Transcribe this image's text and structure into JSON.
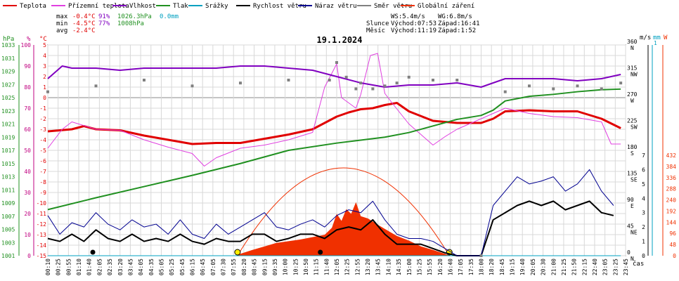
{
  "chart_data": {
    "type": "line",
    "title": "19.1.2024",
    "legend": [
      {
        "label": "Teplota",
        "color": "#e00000"
      },
      {
        "label": "Přízemní teplota",
        "color": "#e040e0"
      },
      {
        "label": "Vlhkost",
        "color": "#8000c0"
      },
      {
        "label": "Tlak",
        "color": "#209020"
      },
      {
        "label": "Srážky",
        "color": "#00a0c0"
      },
      {
        "label": "Rychlost větru",
        "color": "#000000"
      },
      {
        "label": "Náraz větru",
        "color": "#000090"
      },
      {
        "label": "Směr větru",
        "color": "#808080"
      },
      {
        "label": "Globální záření",
        "color": "#f03000"
      }
    ],
    "stats": {
      "max": {
        "label": "max",
        "temp": "-0.4°C",
        "hum": "91%",
        "press": "1026.3hPa",
        "rain": "0.0mm"
      },
      "min": {
        "label": "min",
        "temp": "-4.5°C",
        "hum": "77%",
        "press": "1008hPa"
      },
      "avg": {
        "label": "avg",
        "temp": "-2.4°C"
      },
      "ws": "WS:5.4m/s",
      "wg": "WG:6.8m/s",
      "sun": {
        "label": "Slunce",
        "rise": "Východ:07:53",
        "set": "Západ:16:41"
      },
      "moon": {
        "label": "Měsíc",
        "rise": "Východ:11:19",
        "set": "Západ:1:52"
      }
    },
    "axes": {
      "hpa": {
        "unit": "hPa",
        "ticks": [
          "1001",
          "1003",
          "1005",
          "1007",
          "1009",
          "1011",
          "1013",
          "1015",
          "1017",
          "1019",
          "1021",
          "1023",
          "1025",
          "1027",
          "1029",
          "1031",
          "1033"
        ]
      },
      "pct": {
        "unit": "%",
        "ticks": [
          "0",
          "10",
          "20",
          "30",
          "40",
          "50",
          "60",
          "70",
          "80",
          "90",
          "100"
        ]
      },
      "temp": {
        "unit": "°C",
        "range": [
          -15,
          5
        ]
      },
      "dir": {
        "ticks": [
          "0 N",
          "45 NE",
          "90 E",
          "135 SE",
          "180 S",
          "225 SW",
          "270 W",
          "315 NW",
          "360 N"
        ]
      },
      "ms": {
        "unit": "m/s",
        "ticks": [
          "0",
          "1",
          "2",
          "3",
          "4",
          "5",
          "6",
          "7"
        ]
      },
      "mm": {
        "unit": "mm",
        "tick": "1"
      },
      "wm2": {
        "unit": "W",
        "ticks": [
          "0",
          "48",
          "96",
          "144",
          "192",
          "240",
          "288",
          "336",
          "384",
          "432"
        ]
      },
      "x": {
        "unit": "čas",
        "ticks": [
          "00:10",
          "00:25",
          "00:55",
          "01:10",
          "01:40",
          "02:05",
          "02:35",
          "03:20",
          "03:45",
          "04:05",
          "04:35",
          "05:05",
          "05:25",
          "05:45",
          "06:15",
          "06:45",
          "07:05",
          "07:30",
          "07:55",
          "08:20",
          "08:45",
          "09:15",
          "09:35",
          "10:00",
          "10:25",
          "10:50",
          "11:15",
          "11:40",
          "12:05",
          "12:25",
          "12:55",
          "13:20",
          "13:45",
          "14:10",
          "14:35",
          "15:00",
          "15:25",
          "15:55",
          "16:20",
          "16:40",
          "17:05",
          "17:35",
          "18:00",
          "18:20",
          "18:45",
          "19:15",
          "19:40",
          "20:05",
          "20:30",
          "21:00",
          "21:25",
          "21:50",
          "22:15",
          "22:40",
          "23:05",
          "23:25",
          "23:45"
        ]
      }
    },
    "series": [
      {
        "name": "Teplota",
        "unit": "°C",
        "x": [
          0,
          1,
          1.5,
          2,
          3,
          4,
          5,
          6,
          7,
          8,
          9,
          10,
          11,
          11.5,
          12,
          12.5,
          13,
          13.5,
          14,
          14.5,
          15,
          16,
          17,
          18,
          18.5,
          19,
          20,
          21,
          22,
          23,
          23.8
        ],
        "y": [
          -3.2,
          -3.0,
          -2.7,
          -3.0,
          -3.1,
          -3.6,
          -4.0,
          -4.4,
          -4.3,
          -4.3,
          -3.9,
          -3.5,
          -3.0,
          -2.4,
          -1.8,
          -1.4,
          -1.1,
          -1.0,
          -0.7,
          -0.5,
          -1.3,
          -2.2,
          -2.4,
          -2.4,
          -2.0,
          -1.3,
          -1.2,
          -1.3,
          -1.3,
          -2.0,
          -2.9
        ]
      },
      {
        "name": "Přízemní teplota",
        "unit": "°C",
        "x": [
          0,
          0.6,
          1.0,
          2,
          3,
          4,
          5,
          6,
          6.5,
          7,
          8,
          9,
          10,
          11,
          11.5,
          12,
          12.2,
          12.8,
          13,
          13.4,
          13.7,
          14,
          14.3,
          15,
          16,
          16.5,
          17,
          18,
          19,
          20,
          21,
          22,
          23,
          23.4,
          23.8
        ],
        "y": [
          -4.8,
          -3.0,
          -2.3,
          -3.0,
          -3.1,
          -4.0,
          -4.7,
          -5.3,
          -6.5,
          -5.7,
          -4.8,
          -4.5,
          -4.0,
          -3.3,
          1.0,
          3.2,
          0.0,
          -1.0,
          0.3,
          4.0,
          4.2,
          0.4,
          -0.5,
          -2.5,
          -4.5,
          -3.7,
          -3.0,
          -2.0,
          -1.0,
          -1.5,
          -1.8,
          -1.9,
          -2.3,
          -4.4,
          -4.4
        ]
      },
      {
        "name": "Vlhkost",
        "unit": "%",
        "x": [
          0,
          0.6,
          1,
          2,
          3,
          4,
          5,
          6,
          7,
          8,
          9,
          10,
          11,
          12,
          13,
          14,
          15,
          16,
          17,
          18,
          19,
          20,
          21,
          22,
          23,
          23.8
        ],
        "y": [
          84,
          90,
          89,
          89,
          88,
          89,
          89,
          89,
          89,
          90,
          90,
          89,
          88,
          85,
          82,
          80,
          81,
          81,
          82,
          80,
          84,
          84,
          84,
          83,
          84,
          86
        ]
      },
      {
        "name": "Tlak",
        "unit": "hPa",
        "x": [
          0,
          2,
          4,
          6,
          8,
          9,
          10,
          12,
          14,
          15,
          16,
          17,
          18,
          18.5,
          19,
          20,
          21,
          22,
          23,
          23.8
        ],
        "y": [
          1008,
          1009.8,
          1011.5,
          1013.2,
          1015,
          1016,
          1017,
          1018.1,
          1019,
          1019.7,
          1020.7,
          1021.7,
          1022.3,
          1023.1,
          1024.5,
          1025.2,
          1025.5,
          1025.9,
          1026.2,
          1026.3
        ]
      },
      {
        "name": "Srážky",
        "unit": "mm",
        "x": [
          0,
          23.8
        ],
        "y": [
          0,
          0
        ]
      },
      {
        "name": "Rychlost větru",
        "unit": "m/s",
        "x": [
          0,
          0.5,
          1,
          1.5,
          2,
          2.5,
          3,
          3.5,
          4,
          4.5,
          5,
          5.5,
          6,
          6.5,
          7,
          7.5,
          8,
          8.5,
          9,
          9.5,
          10,
          10.5,
          11,
          11.5,
          12,
          12.5,
          13,
          13.5,
          14,
          14.5,
          15,
          15.5,
          16,
          16.5,
          17,
          17.5,
          18,
          18.5,
          19,
          19.5,
          20,
          20.5,
          21,
          21.5,
          22,
          22.5,
          23,
          23.5
        ],
        "y": [
          1.2,
          1.0,
          1.5,
          1.0,
          1.8,
          1.2,
          1.0,
          1.5,
          1.0,
          1.2,
          1.0,
          1.5,
          1.0,
          0.8,
          1.2,
          1.0,
          1.0,
          1.5,
          1.5,
          1.0,
          1.2,
          1.5,
          1.5,
          1.2,
          1.8,
          2.0,
          1.8,
          2.5,
          1.5,
          0.8,
          0.8,
          0.8,
          0.5,
          0.2,
          0.0,
          0.0,
          0.0,
          2.5,
          3.0,
          3.5,
          3.8,
          3.5,
          3.8,
          3.2,
          3.5,
          3.8,
          3.0,
          2.8
        ]
      },
      {
        "name": "Náraz větru",
        "unit": "m/s",
        "x": [
          0,
          0.5,
          1,
          1.5,
          2,
          2.5,
          3,
          3.5,
          4,
          4.5,
          5,
          5.5,
          6,
          6.5,
          7,
          7.5,
          8,
          8.5,
          9,
          9.5,
          10,
          10.5,
          11,
          11.5,
          12,
          12.5,
          13,
          13.5,
          14,
          14.5,
          15,
          15.5,
          16,
          16.5,
          17,
          17.5,
          18,
          18.5,
          19,
          19.5,
          20,
          20.5,
          21,
          21.5,
          22,
          22.5,
          23,
          23.5
        ],
        "y": [
          2.8,
          1.5,
          2.3,
          2.0,
          3.0,
          2.2,
          1.8,
          2.5,
          2.0,
          2.2,
          1.5,
          2.5,
          1.5,
          1.2,
          2.2,
          1.5,
          2.0,
          2.5,
          3.0,
          2.0,
          1.8,
          2.2,
          2.5,
          2.0,
          2.8,
          3.2,
          3.0,
          3.8,
          2.5,
          1.5,
          1.2,
          1.2,
          1.0,
          0.5,
          0.0,
          0.0,
          0.0,
          3.5,
          4.5,
          5.5,
          5.0,
          5.2,
          5.5,
          4.5,
          5.0,
          6.0,
          4.5,
          3.5
        ]
      },
      {
        "name": "Směr větru",
        "unit": "°",
        "x": [
          0,
          2,
          4,
          6,
          8,
          10,
          11.7,
          12,
          12.4,
          12.8,
          13,
          13.5,
          14,
          14.5,
          15,
          16,
          17,
          18,
          19,
          20,
          21,
          22,
          23,
          23.8
        ],
        "y": [
          280,
          290,
          300,
          290,
          295,
          300,
          300,
          330,
          305,
          285,
          295,
          285,
          290,
          295,
          305,
          300,
          300,
          0,
          280,
          290,
          285,
          290,
          285,
          295
        ]
      },
      {
        "name": "Globální záření",
        "unit": "W/m2",
        "x": [
          7.9,
          8.5,
          9.5,
          10.5,
          11.0,
          11.5,
          11.8,
          12.0,
          12.2,
          12.4,
          12.6,
          12.8,
          13.0,
          13.3,
          13.6,
          14.0,
          14.5,
          15.0,
          15.5,
          16.0,
          16.5,
          16.7
        ],
        "y": [
          5,
          25,
          55,
          70,
          80,
          90,
          120,
          180,
          150,
          200,
          180,
          230,
          170,
          160,
          140,
          115,
          85,
          65,
          40,
          25,
          8,
          0
        ]
      }
    ]
  }
}
